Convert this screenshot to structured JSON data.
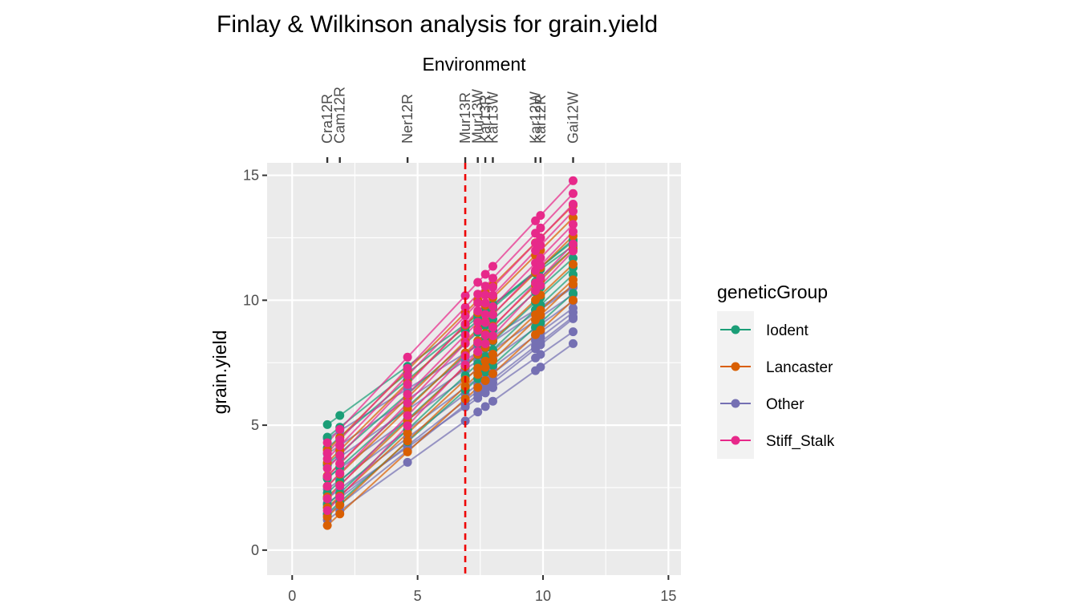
{
  "chart_data": {
    "type": "line",
    "title": "Finlay & Wilkinson analysis for grain.yield",
    "xlabel": "",
    "ylabel": "grain.yield",
    "top_axis_title": "Environment",
    "xlim": [
      -1,
      15.5
    ],
    "ylim": [
      -1,
      15.5
    ],
    "x_ticks": [
      0,
      5,
      10,
      15
    ],
    "y_ticks": [
      0,
      5,
      10,
      15
    ],
    "grid": true,
    "reference_line_x": 6.9,
    "environments": [
      {
        "label": "Cra12R",
        "x": 1.4
      },
      {
        "label": "Cam12R",
        "x": 1.9
      },
      {
        "label": "Ner12R",
        "x": 4.6
      },
      {
        "label": "Mur13R",
        "x": 6.9
      },
      {
        "label": "Mur13W",
        "x": 7.4
      },
      {
        "label": "Kar13R",
        "x": 7.7
      },
      {
        "label": "Kar13W",
        "x": 8.0
      },
      {
        "label": "Kar12W",
        "x": 9.7
      },
      {
        "label": "Kar12R",
        "x": 9.9
      },
      {
        "label": "Gai12W",
        "x": 11.2
      }
    ],
    "legend": {
      "title": "geneticGroup",
      "position": "right",
      "entries": [
        {
          "name": "Iodent",
          "color": "#1B9E77"
        },
        {
          "name": "Lancaster",
          "color": "#D95F02"
        },
        {
          "name": "Other",
          "color": "#7570B3"
        },
        {
          "name": "Stiff_Stalk",
          "color": "#E7298A"
        }
      ]
    },
    "series": [
      {
        "group": "Stiff_Stalk",
        "intercept": 2.8,
        "slope": 1.07
      },
      {
        "group": "Stiff_Stalk",
        "intercept": 2.4,
        "slope": 1.06
      },
      {
        "group": "Stiff_Stalk",
        "intercept": 2.2,
        "slope": 1.04
      },
      {
        "group": "Stiff_Stalk",
        "intercept": 1.8,
        "slope": 1.05
      },
      {
        "group": "Stiff_Stalk",
        "intercept": 1.5,
        "slope": 1.03
      },
      {
        "group": "Stiff_Stalk",
        "intercept": 1.1,
        "slope": 1.04
      },
      {
        "group": "Stiff_Stalk",
        "intercept": 0.6,
        "slope": 1.04
      },
      {
        "group": "Stiff_Stalk",
        "intercept": 0.1,
        "slope": 1.06
      },
      {
        "group": "Lancaster",
        "intercept": 2.6,
        "slope": 1.0
      },
      {
        "group": "Lancaster",
        "intercept": 2.1,
        "slope": 1.0
      },
      {
        "group": "Lancaster",
        "intercept": 1.6,
        "slope": 0.98
      },
      {
        "group": "Lancaster",
        "intercept": 1.2,
        "slope": 0.97
      },
      {
        "group": "Lancaster",
        "intercept": 0.8,
        "slope": 0.95
      },
      {
        "group": "Lancaster",
        "intercept": 0.4,
        "slope": 0.93
      },
      {
        "group": "Lancaster",
        "intercept": 0.0,
        "slope": 0.95
      },
      {
        "group": "Lancaster",
        "intercept": -0.3,
        "slope": 0.92
      },
      {
        "group": "Iodent",
        "intercept": 4.0,
        "slope": 0.73
      },
      {
        "group": "Iodent",
        "intercept": 3.4,
        "slope": 0.8
      },
      {
        "group": "Iodent",
        "intercept": 2.9,
        "slope": 0.85
      },
      {
        "group": "Iodent",
        "intercept": 2.2,
        "slope": 0.88
      },
      {
        "group": "Iodent",
        "intercept": 1.6,
        "slope": 0.9
      },
      {
        "group": "Iodent",
        "intercept": 1.0,
        "slope": 0.92
      },
      {
        "group": "Iodent",
        "intercept": 0.5,
        "slope": 0.94
      },
      {
        "group": "Iodent",
        "intercept": 0.2,
        "slope": 0.9
      },
      {
        "group": "Other",
        "intercept": 3.6,
        "slope": 0.62
      },
      {
        "group": "Other",
        "intercept": 2.9,
        "slope": 0.68
      },
      {
        "group": "Other",
        "intercept": 2.4,
        "slope": 0.7
      },
      {
        "group": "Other",
        "intercept": 1.9,
        "slope": 0.72
      },
      {
        "group": "Other",
        "intercept": 1.4,
        "slope": 0.74
      },
      {
        "group": "Other",
        "intercept": 1.0,
        "slope": 0.76
      },
      {
        "group": "Other",
        "intercept": 0.6,
        "slope": 0.78
      },
      {
        "group": "Other",
        "intercept": 0.3,
        "slope": 0.8
      },
      {
        "group": "Other",
        "intercept": 0.9,
        "slope": 0.7
      },
      {
        "group": "Other",
        "intercept": 0.2,
        "slope": 0.72
      }
    ]
  }
}
